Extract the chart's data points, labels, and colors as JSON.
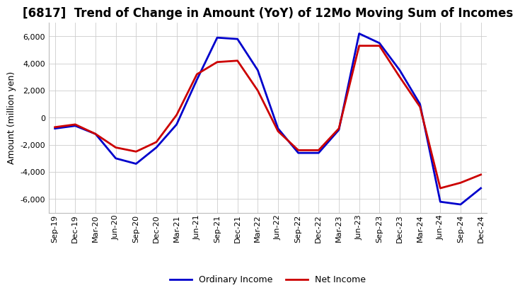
{
  "title": "[6817]  Trend of Change in Amount (YoY) of 12Mo Moving Sum of Incomes",
  "ylabel": "Amount (million yen)",
  "ylim": [
    -7000,
    7000
  ],
  "yticks": [
    -6000,
    -4000,
    -2000,
    0,
    2000,
    4000,
    6000
  ],
  "x_labels": [
    "Sep-19",
    "Dec-19",
    "Mar-20",
    "Jun-20",
    "Sep-20",
    "Dec-20",
    "Mar-21",
    "Jun-21",
    "Sep-21",
    "Dec-21",
    "Mar-22",
    "Jun-22",
    "Sep-22",
    "Dec-22",
    "Mar-23",
    "Jun-23",
    "Sep-23",
    "Dec-23",
    "Mar-24",
    "Jun-24",
    "Sep-24",
    "Dec-24"
  ],
  "ordinary_income": [
    -800,
    -600,
    -1200,
    -3000,
    -3400,
    -2200,
    -500,
    2800,
    5900,
    5800,
    3500,
    -800,
    -2600,
    -2600,
    -900,
    6200,
    5500,
    3500,
    1000,
    -6200,
    -6400,
    -5200
  ],
  "net_income": [
    -700,
    -500,
    -1200,
    -2200,
    -2500,
    -1800,
    200,
    3200,
    4100,
    4200,
    2000,
    -1000,
    -2400,
    -2400,
    -800,
    5300,
    5300,
    3000,
    800,
    -5200,
    -4800,
    -4200
  ],
  "ordinary_color": "#0000cc",
  "net_color": "#cc0000",
  "line_width": 2.0,
  "legend_labels": [
    "Ordinary Income",
    "Net Income"
  ],
  "background_color": "#ffffff",
  "grid_color": "#cccccc",
  "title_fontsize": 12,
  "axis_fontsize": 9,
  "tick_fontsize": 8
}
